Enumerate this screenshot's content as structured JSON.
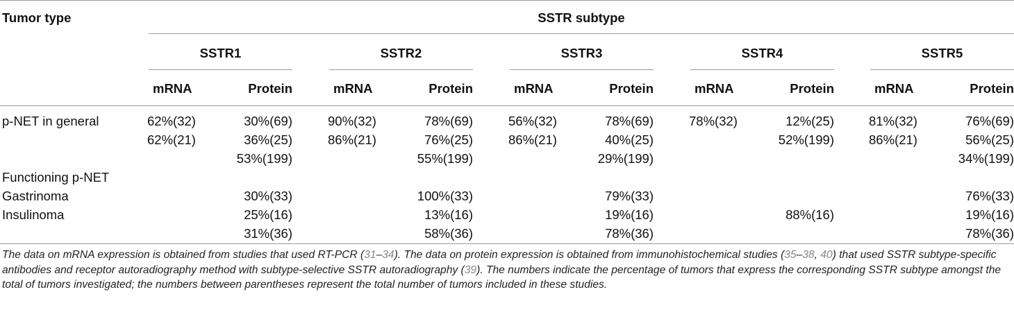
{
  "header": {
    "tumor_type": "Tumor type",
    "group": "SSTR subtype",
    "subtypes": [
      "SSTR1",
      "SSTR2",
      "SSTR3",
      "SSTR4",
      "SSTR5"
    ],
    "mrna": "mRNA",
    "protein": "Protein"
  },
  "rows": [
    {
      "label": "p-NET in general",
      "cells": [
        [
          "62%(32)",
          "30%(69)"
        ],
        [
          "90%(32)",
          "78%(69)"
        ],
        [
          "56%(32)",
          "78%(69)"
        ],
        [
          "78%(32)",
          "12%(25)"
        ],
        [
          "81%(32)",
          "76%(69)"
        ]
      ]
    },
    {
      "label": "",
      "cells": [
        [
          "62%(21)",
          "36%(25)"
        ],
        [
          "86%(21)",
          "76%(25)"
        ],
        [
          "86%(21)",
          "40%(25)"
        ],
        [
          "",
          "52%(199)"
        ],
        [
          "86%(21)",
          "56%(25)"
        ]
      ]
    },
    {
      "label": "",
      "cells": [
        [
          "",
          "53%(199)"
        ],
        [
          "",
          "55%(199)"
        ],
        [
          "",
          "29%(199)"
        ],
        [
          "",
          ""
        ],
        [
          "",
          "34%(199)"
        ]
      ]
    },
    {
      "label": "Functioning p-NET",
      "cells": [
        [
          "",
          ""
        ],
        [
          "",
          ""
        ],
        [
          "",
          ""
        ],
        [
          "",
          ""
        ],
        [
          "",
          ""
        ]
      ]
    },
    {
      "label": "Gastrinoma",
      "cells": [
        [
          "",
          "30%(33)"
        ],
        [
          "",
          "100%(33)"
        ],
        [
          "",
          "79%(33)"
        ],
        [
          "",
          ""
        ],
        [
          "",
          "76%(33)"
        ]
      ]
    },
    {
      "label": "Insulinoma",
      "cells": [
        [
          "",
          "25%(16)"
        ],
        [
          "",
          "13%(16)"
        ],
        [
          "",
          "19%(16)"
        ],
        [
          "",
          "88%(16)"
        ],
        [
          "",
          "19%(16)"
        ]
      ]
    },
    {
      "label": "",
      "cells": [
        [
          "",
          "31%(36)"
        ],
        [
          "",
          "58%(36)"
        ],
        [
          "",
          "78%(36)"
        ],
        [
          "",
          ""
        ],
        [
          "",
          "78%(36)"
        ]
      ]
    }
  ],
  "footnote": {
    "p1": "The data on mRNA expression is obtained from studies that used RT-PCR (",
    "c1": "31",
    "p2": "–",
    "c2": "34",
    "p3": "). The data on protein expression is obtained from immunohistochemical studies (",
    "c3": "35",
    "p4": "–",
    "c4": "38",
    "p5": ", ",
    "c5": "40",
    "p6": ") that used SSTR subtype-specific antibodies and receptor autoradiography method with subtype-selective SSTR autoradiography (",
    "c6": "39",
    "p7": "). The numbers indicate the percentage of tumors that express the corresponding SSTR subtype amongst the total of tumors investigated; the numbers between parentheses represent the total number of tumors included in these studies."
  }
}
